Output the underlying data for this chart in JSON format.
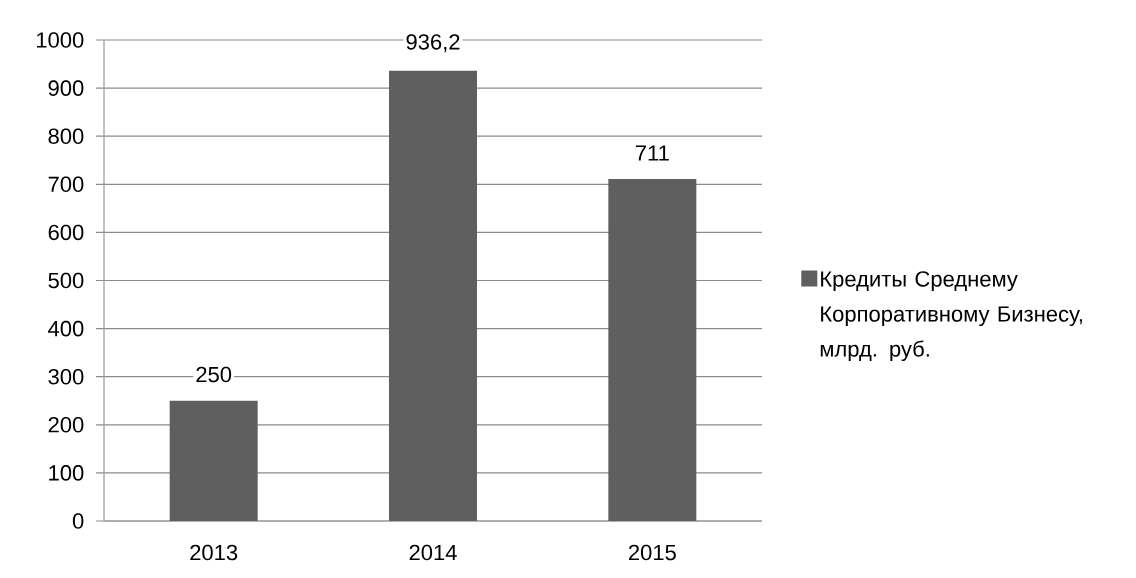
{
  "chart_data": {
    "type": "bar",
    "categories": [
      "2013",
      "2014",
      "2015"
    ],
    "series": [
      {
        "name": "Кредиты Среднему Корпоративному Бизнесу, млрд. руб.",
        "color": "#5f5f5f",
        "values": [
          250,
          936.2,
          711
        ],
        "value_labels": [
          "250",
          "936,2",
          "711"
        ]
      }
    ],
    "ylim": [
      0,
      1000
    ],
    "yticks": [
      0,
      100,
      200,
      300,
      400,
      500,
      600,
      700,
      800,
      900,
      1000
    ],
    "grid": "y",
    "legend": "right"
  }
}
